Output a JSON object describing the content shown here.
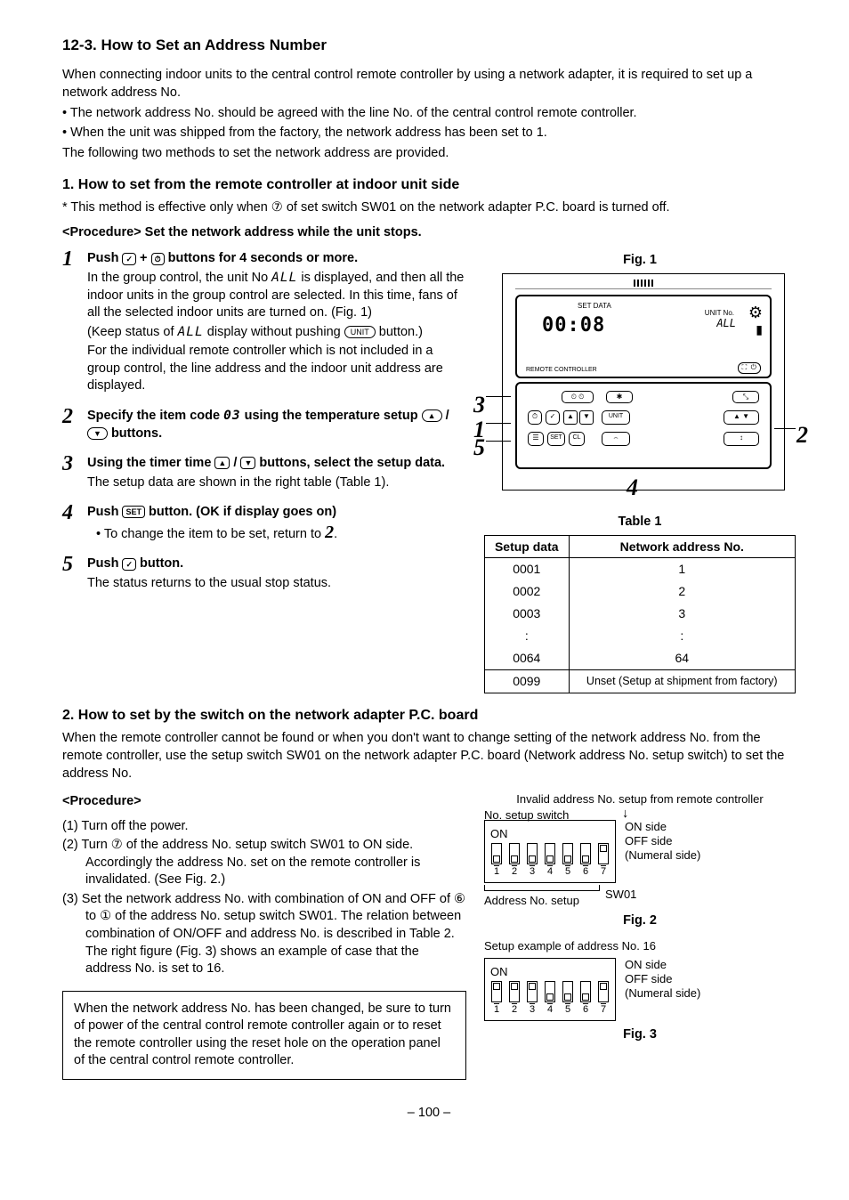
{
  "page_number": "– 100 –",
  "section_title": "12-3.  How to Set an Address Number",
  "intro_p1": "When connecting indoor units to the central control remote controller by using a network adapter, it is required to set up a network address No.",
  "intro_b1": "•  The network address No. should be agreed with the line No. of the central control remote controller.",
  "intro_b2": "•  When the unit was shipped from the factory, the network address has been set to 1.",
  "intro_p2": "The following two methods to set the network address are provided.",
  "sub1_title": "1.  How to set from the remote controller at indoor unit side",
  "sub1_note": "* This method is effective only when ⑦ of set switch SW01 on the network adapter P.C. board is turned off.",
  "sub1_proc_head": "<Procedure> Set the network address while the unit stops.",
  "steps": [
    {
      "num": "1",
      "lead_a": "Push ",
      "lead_icon1": "✓",
      "lead_b": " + ",
      "lead_icon2": "⏱",
      "lead_c": " buttons for 4 seconds or more.",
      "body1a": "In the group control, the unit No ",
      "body1_seg": "ALL",
      "body1b": " is displayed, and then all the indoor units in the group control are selected. In this time, fans of all the selected indoor units are turned on. (Fig. 1)",
      "body2a": "(Keep status of ",
      "body2_seg": "ALL",
      "body2b": " display without pushing ",
      "body2_icon": "UNIT",
      "body2c": " button.)",
      "body3": "For the individual remote controller which is not included in a group control, the line address and the indoor unit address are displayed."
    },
    {
      "num": "2",
      "lead_a": "Specify the item code ",
      "lead_seg": "03",
      "lead_b": " using the temperature setup ",
      "lead_icon1": "▲",
      "lead_c": " / ",
      "lead_icon2": "▼",
      "lead_d": " buttons."
    },
    {
      "num": "3",
      "lead_a": "Using the timer time ",
      "lead_icon1": "▲",
      "lead_b": " / ",
      "lead_icon2": "▼",
      "lead_c": " buttons, select the setup data.",
      "body1": "The setup data are shown in the right table (Table 1)."
    },
    {
      "num": "4",
      "lead_a": "Push ",
      "lead_icon1": "SET",
      "lead_b": " button. (OK if display goes on)",
      "body1a": "• To change the item to be set, return to ",
      "body1_bignum": "2",
      "body1b": "."
    },
    {
      "num": "5",
      "lead_a": "Push ",
      "lead_icon1": "✓",
      "lead_b": " button.",
      "body1": "The status returns to the usual stop status."
    }
  ],
  "fig1_caption": "Fig. 1",
  "table1_caption": "Table 1",
  "table1": {
    "head": [
      "Setup data",
      "Network address No."
    ],
    "rows": [
      [
        "0001",
        "1"
      ],
      [
        "0002",
        "2"
      ],
      [
        "0003",
        "3"
      ],
      [
        ":",
        ":"
      ],
      [
        "0064",
        "64"
      ]
    ],
    "last": [
      "0099",
      "Unset (Setup at shipment from factory)"
    ]
  },
  "remote": {
    "display_main": "00:08",
    "display_setdata": "SET DATA",
    "display_unitno": "UNIT No.",
    "display_all": "ALL",
    "label_remote": "REMOTE CONTROLLER",
    "callouts": {
      "c1": "1",
      "c2": "2",
      "c3": "3",
      "c4": "4",
      "c5": "5"
    }
  },
  "sub2_title": "2.  How to set by the switch on the network adapter P.C. board",
  "sub2_p1": "When the remote controller cannot be found or when you don't want to change setting of the network address No. from the remote controller, use the setup switch SW01 on the network adapter P.C. board (Network address No. setup switch) to set the address No.",
  "sub2_proc_head": "<Procedure>",
  "sub2_s1": "(1) Turn off the power.",
  "sub2_s2": "(2) Turn ⑦ of the address No. setup switch SW01 to ON side. Accordingly the address No. set on the remote controller is invalidated. (See Fig. 2.)",
  "sub2_s3": "(3) Set the network address No. with combination of ON and OFF of ⑥ to ① of the address No. setup switch SW01. The relation between combination of ON/OFF and address No. is described in Table 2. The right figure (Fig. 3) shows an example of case that the address No. is set to 16.",
  "notebox": "When the network address No. has been changed, be sure to turn of power of the central control remote controller again or to reset the remote controller using the reset hole on the operation panel of the central control remote controller.",
  "fig2": {
    "top_label1": "Invalid address No. setup from remote controller",
    "top_label2": "No. setup switch",
    "on_label": "ON",
    "positions": [
      "off",
      "off",
      "off",
      "off",
      "off",
      "off",
      "on"
    ],
    "numbers": [
      "1",
      "2",
      "3",
      "4",
      "5",
      "6",
      "7"
    ],
    "side1": "ON side",
    "side2": "OFF side",
    "side3": "(Numeral side)",
    "brace_label": "Address No. setup",
    "swname": "SW01",
    "caption": "Fig. 2"
  },
  "fig3": {
    "title": "Setup example of address No. 16",
    "on_label": "ON",
    "positions": [
      "on",
      "on",
      "on",
      "off",
      "off",
      "off",
      "on"
    ],
    "numbers": [
      "1",
      "2",
      "3",
      "4",
      "5",
      "6",
      "7"
    ],
    "side1": "ON side",
    "side2": "OFF side",
    "side3": "(Numeral side)",
    "caption": "Fig. 3"
  }
}
